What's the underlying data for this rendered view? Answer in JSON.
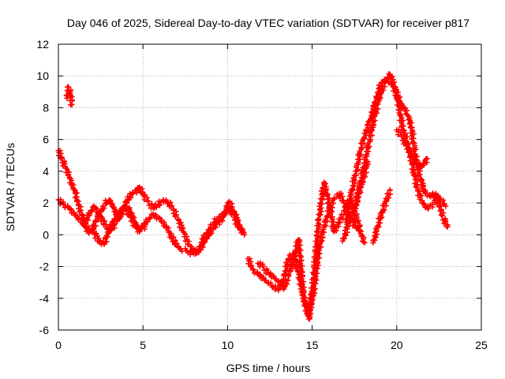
{
  "chart_data": {
    "type": "scatter",
    "title": "Day 046 of 2025, Sidereal Day-to-day VTEC variation (SDTVAR) for receiver p817",
    "xlabel": "GPS time / hours",
    "ylabel": "SDTVAR / TECUs",
    "xlim": [
      0,
      25
    ],
    "ylim": [
      -6,
      12
    ],
    "xticks": [
      0,
      5,
      10,
      15,
      20,
      25
    ],
    "yticks": [
      -6,
      -4,
      -2,
      0,
      2,
      4,
      6,
      8,
      10,
      12
    ],
    "grid": true,
    "marker": "+",
    "series": [
      {
        "name": "SDTVAR",
        "color": "#ff0000",
        "traces": [
          {
            "x": [
              0.0,
              0.2,
              0.4,
              0.6,
              0.8,
              1.0,
              1.2,
              1.4,
              1.6,
              1.8,
              2.0,
              2.2,
              2.4,
              2.6,
              2.8,
              3.0,
              3.2,
              3.4,
              3.6,
              3.8,
              4.0,
              4.2,
              4.4,
              4.6,
              4.8,
              5.0
            ],
            "y": [
              5.3,
              4.8,
              4.3,
              3.8,
              3.2,
              2.6,
              1.9,
              1.2,
              0.5,
              0.1,
              0.3,
              0.8,
              1.3,
              1.6,
              2.0,
              2.2,
              1.9,
              1.4,
              1.0,
              1.5,
              2.1,
              2.4,
              2.6,
              2.8,
              3.0,
              2.6
            ]
          },
          {
            "x": [
              0.0,
              0.3,
              0.6,
              0.9,
              1.2,
              1.5,
              1.8,
              2.1,
              2.4,
              2.7,
              3.0,
              3.3,
              3.6,
              3.9,
              4.2,
              4.5,
              4.8
            ],
            "y": [
              2.2,
              1.9,
              1.7,
              1.4,
              1.0,
              0.6,
              0.4,
              0.2,
              -0.4,
              -0.6,
              0.3,
              0.9,
              1.5,
              1.8,
              1.6,
              0.8,
              0.2
            ]
          },
          {
            "x": [
              0.5,
              0.6,
              0.7,
              0.8
            ],
            "y": [
              8.6,
              9.3,
              8.9,
              8.2
            ]
          },
          {
            "x": [
              1.5,
              1.8,
              2.1,
              2.4,
              2.7,
              3.0,
              3.3,
              3.6,
              3.9,
              4.2,
              4.5,
              4.8,
              5.1
            ],
            "y": [
              0.6,
              1.2,
              1.8,
              1.4,
              0.7,
              0.2,
              0.6,
              1.2,
              1.8,
              1.3,
              0.6,
              0.3,
              0.5
            ]
          },
          {
            "x": [
              5.0,
              5.3,
              5.6,
              5.9,
              6.2,
              6.5,
              6.8,
              7.1,
              7.4,
              7.7,
              8.0,
              8.3
            ],
            "y": [
              2.5,
              2.1,
              1.7,
              1.9,
              2.2,
              2.0,
              1.6,
              0.9,
              0.2,
              -0.6,
              -1.0,
              -1.1
            ]
          },
          {
            "x": [
              4.8,
              5.2,
              5.6,
              6.0,
              6.4,
              6.8,
              7.2,
              7.6,
              8.0,
              8.3
            ],
            "y": [
              0.4,
              0.8,
              1.3,
              1.0,
              0.5,
              -0.4,
              -0.9,
              -1.0,
              -1.2,
              -0.9
            ]
          },
          {
            "x": [
              8.3,
              8.6,
              8.9,
              9.2,
              9.5,
              9.8,
              10.1,
              10.4,
              10.7,
              11.0
            ],
            "y": [
              -0.9,
              -0.2,
              0.3,
              0.8,
              1.1,
              1.3,
              1.7,
              1.1,
              0.4,
              0.0
            ]
          },
          {
            "x": [
              8.3,
              8.6,
              8.9,
              9.2,
              9.5,
              9.8,
              10.1,
              10.4,
              10.7,
              10.9
            ],
            "y": [
              -1.1,
              -0.5,
              0.0,
              0.5,
              0.8,
              1.2,
              2.1,
              1.4,
              0.6,
              0.2
            ]
          },
          {
            "x": [
              11.2,
              11.5,
              11.8,
              12.1,
              12.4,
              12.7,
              13.0,
              13.3,
              13.6,
              13.9,
              14.2,
              14.5,
              14.8,
              15.1,
              15.4,
              15.7,
              16.0,
              16.3,
              16.6,
              16.9,
              17.2,
              17.5,
              17.8,
              18.1
            ],
            "y": [
              -1.5,
              -2.2,
              -2.5,
              -2.7,
              -3.0,
              -3.3,
              -3.5,
              -2.8,
              -1.5,
              -1.2,
              -2.5,
              -4.0,
              -5.0,
              -3.5,
              -1.0,
              0.5,
              1.5,
              2.3,
              2.6,
              2.0,
              1.2,
              0.6,
              0.3,
              -0.5
            ]
          },
          {
            "x": [
              11.8,
              12.1,
              12.4,
              12.7,
              13.0,
              13.3,
              13.6,
              13.9,
              14.2,
              14.5,
              14.8,
              15.1,
              15.4,
              15.7,
              16.0,
              16.3,
              16.6,
              16.9,
              17.2,
              17.5,
              17.8
            ],
            "y": [
              -1.8,
              -2.0,
              -2.4,
              -2.6,
              -2.9,
              -3.4,
              -2.6,
              -1.5,
              -0.3,
              -4.0,
              -5.3,
              -2.5,
              1.0,
              3.3,
              2.0,
              0.2,
              0.8,
              1.5,
              2.2,
              1.5,
              0.5
            ]
          },
          {
            "x": [
              17.0,
              17.3,
              17.6,
              17.9,
              18.2,
              18.5,
              18.8,
              19.1,
              19.4,
              19.7,
              20.0,
              20.3,
              20.6,
              20.9,
              21.2,
              21.5,
              21.8,
              22.1,
              22.4,
              22.7,
              23.0
            ],
            "y": [
              0.8,
              2.5,
              4.0,
              5.5,
              6.5,
              7.5,
              8.6,
              9.6,
              9.8,
              9.5,
              8.8,
              7.0,
              5.8,
              4.5,
              3.0,
              2.0,
              1.7,
              1.9,
              2.3,
              1.2,
              0.5
            ]
          },
          {
            "x": [
              17.5,
              17.8,
              18.1,
              18.4,
              18.7,
              19.0,
              19.3,
              19.6,
              19.9,
              20.2,
              20.5,
              20.8,
              21.1,
              21.4,
              21.7,
              22.0,
              22.3,
              22.6,
              22.9
            ],
            "y": [
              1.5,
              3.0,
              4.5,
              6.0,
              7.5,
              8.8,
              9.6,
              10.1,
              9.3,
              8.4,
              7.8,
              7.2,
              5.0,
              3.5,
              2.6,
              2.4,
              2.6,
              2.2,
              1.8
            ]
          },
          {
            "x": [
              18.6,
              18.8,
              19.0,
              19.2,
              19.4,
              19.6
            ],
            "y": [
              -0.5,
              0.2,
              1.0,
              1.6,
              2.2,
              2.8
            ]
          },
          {
            "x": [
              20.0,
              20.3,
              20.6,
              20.9,
              21.2,
              21.5,
              21.8
            ],
            "y": [
              6.6,
              6.2,
              5.6,
              5.0,
              4.5,
              4.3,
              4.8
            ]
          },
          {
            "x": [
              16.8,
              17.1,
              17.4,
              17.7,
              18.0,
              18.3
            ],
            "y": [
              -0.4,
              0.5,
              1.4,
              2.4,
              3.5,
              4.6
            ]
          }
        ]
      }
    ]
  }
}
